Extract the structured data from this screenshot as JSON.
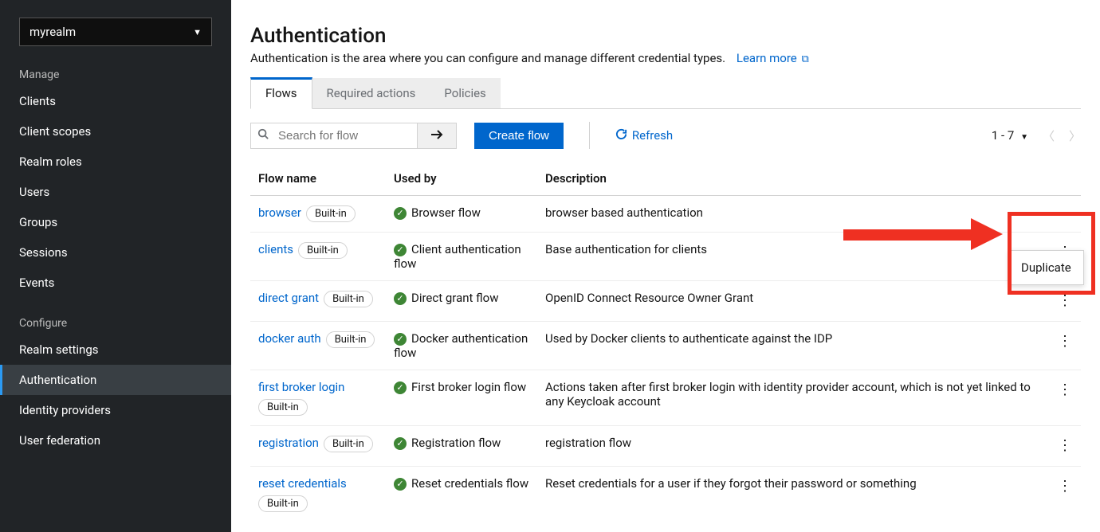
{
  "realm": {
    "name": "myrealm"
  },
  "sidebar": {
    "sections": [
      {
        "title": "Manage",
        "items": [
          {
            "label": "Clients"
          },
          {
            "label": "Client scopes"
          },
          {
            "label": "Realm roles"
          },
          {
            "label": "Users"
          },
          {
            "label": "Groups"
          },
          {
            "label": "Sessions"
          },
          {
            "label": "Events"
          }
        ]
      },
      {
        "title": "Configure",
        "items": [
          {
            "label": "Realm settings"
          },
          {
            "label": "Authentication",
            "active": true
          },
          {
            "label": "Identity providers"
          },
          {
            "label": "User federation"
          }
        ]
      }
    ]
  },
  "page": {
    "title": "Authentication",
    "description": "Authentication is the area where you can configure and manage different credential types.",
    "learn_more": "Learn more"
  },
  "tabs": [
    {
      "label": "Flows",
      "active": true
    },
    {
      "label": "Required actions"
    },
    {
      "label": "Policies"
    }
  ],
  "toolbar": {
    "search_placeholder": "Search for flow",
    "create_label": "Create flow",
    "refresh_label": "Refresh",
    "page_count": "1 - 7"
  },
  "table": {
    "columns": {
      "name": "Flow name",
      "used": "Used by",
      "desc": "Description"
    },
    "rows": [
      {
        "name": "browser",
        "builtin": "Built-in",
        "used": "Browser flow",
        "desc": "browser based authentication",
        "menu_open": true
      },
      {
        "name": "clients",
        "builtin": "Built-in",
        "used": "Client authentication flow",
        "desc": "Base authentication for clients"
      },
      {
        "name": "direct grant",
        "builtin": "Built-in",
        "used": "Direct grant flow",
        "desc": "OpenID Connect Resource Owner Grant"
      },
      {
        "name": "docker auth",
        "builtin": "Built-in",
        "used": "Docker authentication flow",
        "desc": "Used by Docker clients to authenticate against the IDP"
      },
      {
        "name": "first broker login",
        "builtin": "Built-in",
        "wrap": true,
        "used": "First broker login flow",
        "desc": "Actions taken after first broker login with identity provider account, which is not yet linked to any Keycloak account"
      },
      {
        "name": "registration",
        "builtin": "Built-in",
        "used": "Registration flow",
        "desc": "registration flow"
      },
      {
        "name": "reset credentials",
        "builtin": "Built-in",
        "wrap": true,
        "used": "Reset credentials flow",
        "desc": "Reset credentials for a user if they forgot their password or something"
      }
    ]
  },
  "menu": {
    "duplicate": "Duplicate"
  },
  "colors": {
    "sidebar_bg": "#212427",
    "link": "#0066cc",
    "primary_btn": "#0066cc",
    "success": "#3e8635",
    "highlight": "#ef3022",
    "border": "#d2d2d2"
  }
}
